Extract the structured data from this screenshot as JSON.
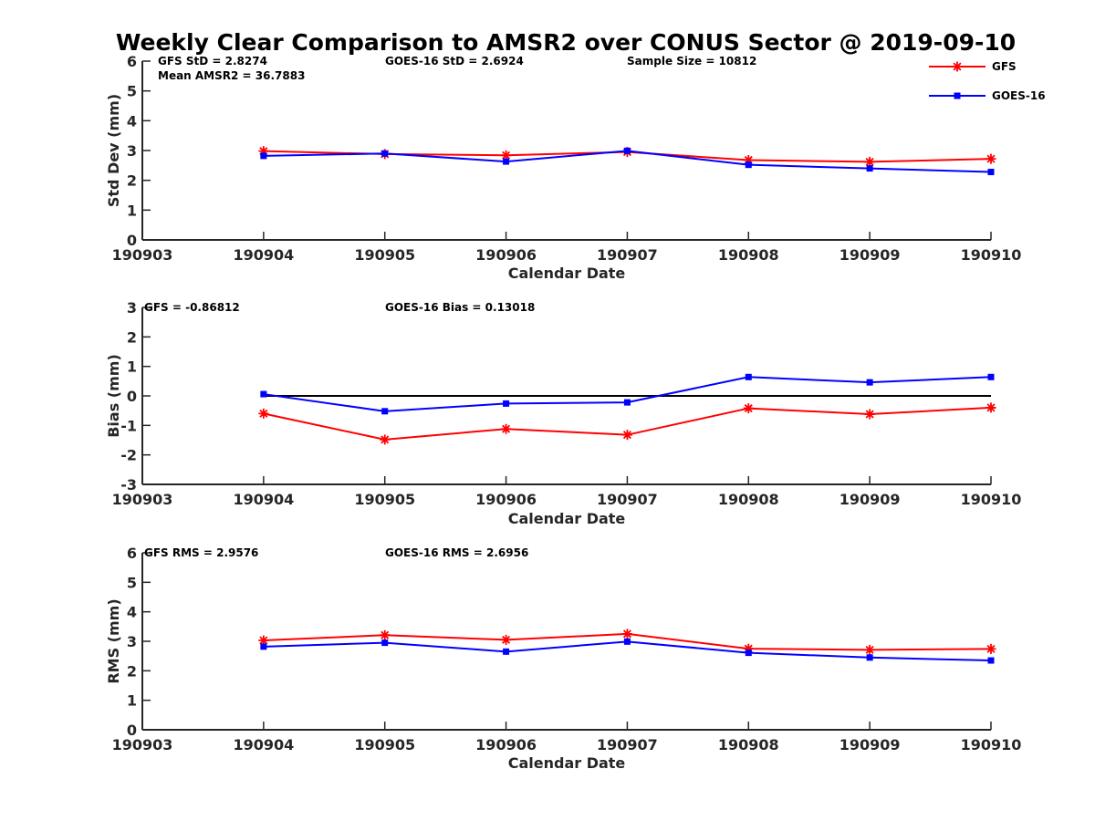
{
  "chart_data": [
    {
      "type": "line",
      "title": "Weekly Clear Comparison to AMSR2 over CONUS Sector @ 2019-09-10",
      "xlabel": "Calendar Date",
      "ylabel": "Std Dev (mm)",
      "xlim": [
        190903,
        190910
      ],
      "ylim": [
        0,
        6
      ],
      "xticks": [
        "190903",
        "190904",
        "190905",
        "190906",
        "190907",
        "190908",
        "190909",
        "190910"
      ],
      "yticks": [
        "0",
        "1",
        "2",
        "3",
        "4",
        "5",
        "6"
      ],
      "x": [
        190904,
        190905,
        190906,
        190907,
        190908,
        190909,
        190910
      ],
      "series": [
        {
          "name": "GFS",
          "color": "#ff0000",
          "marker": "asterisk",
          "values": [
            2.98,
            2.88,
            2.84,
            2.95,
            2.68,
            2.62,
            2.72
          ]
        },
        {
          "name": "GOES-16",
          "color": "#0000ff",
          "marker": "square",
          "values": [
            2.82,
            2.9,
            2.63,
            2.99,
            2.52,
            2.4,
            2.28
          ]
        }
      ],
      "annotations": [
        "GFS StD = 2.8274",
        "Mean AMSR2 = 36.7883",
        "GOES-16 StD = 2.6924",
        "Sample Size = 10812"
      ],
      "legend": {
        "placement": "top-right",
        "entries": [
          "GFS",
          "GOES-16"
        ]
      }
    },
    {
      "type": "line",
      "xlabel": "Calendar Date",
      "ylabel": "Bias (mm)",
      "xlim": [
        190903,
        190910
      ],
      "ylim": [
        -3,
        3
      ],
      "xticks": [
        "190903",
        "190904",
        "190905",
        "190906",
        "190907",
        "190908",
        "190909",
        "190910"
      ],
      "yticks": [
        "-3",
        "-2",
        "-1",
        "0",
        "1",
        "2",
        "3"
      ],
      "x": [
        190904,
        190905,
        190906,
        190907,
        190908,
        190909,
        190910
      ],
      "zero_line": {
        "x": [
          190904,
          190910
        ],
        "y": 0,
        "color": "#000000"
      },
      "series": [
        {
          "name": "GFS",
          "color": "#ff0000",
          "marker": "asterisk",
          "values": [
            -0.6,
            -1.48,
            -1.12,
            -1.32,
            -0.42,
            -0.62,
            -0.4
          ]
        },
        {
          "name": "GOES-16",
          "color": "#0000ff",
          "marker": "square",
          "values": [
            0.06,
            -0.52,
            -0.26,
            -0.22,
            0.64,
            0.46,
            0.64
          ]
        }
      ],
      "annotations": [
        "GFS = -0.86812",
        "GOES-16 Bias  = 0.13018"
      ]
    },
    {
      "type": "line",
      "xlabel": "Calendar Date",
      "ylabel": "RMS (mm)",
      "xlim": [
        190903,
        190910
      ],
      "ylim": [
        0,
        6
      ],
      "xticks": [
        "190903",
        "190904",
        "190905",
        "190906",
        "190907",
        "190908",
        "190909",
        "190910"
      ],
      "yticks": [
        "0",
        "1",
        "2",
        "3",
        "4",
        "5",
        "6"
      ],
      "x": [
        190904,
        190905,
        190906,
        190907,
        190908,
        190909,
        190910
      ],
      "series": [
        {
          "name": "GFS",
          "color": "#ff0000",
          "marker": "asterisk",
          "values": [
            3.03,
            3.21,
            3.05,
            3.25,
            2.75,
            2.71,
            2.74
          ]
        },
        {
          "name": "GOES-16",
          "color": "#0000ff",
          "marker": "square",
          "values": [
            2.82,
            2.95,
            2.65,
            2.99,
            2.61,
            2.45,
            2.35
          ]
        }
      ],
      "annotations": [
        "GFS RMS = 2.9576",
        "GOES-16 RMS = 2.6956"
      ]
    }
  ]
}
